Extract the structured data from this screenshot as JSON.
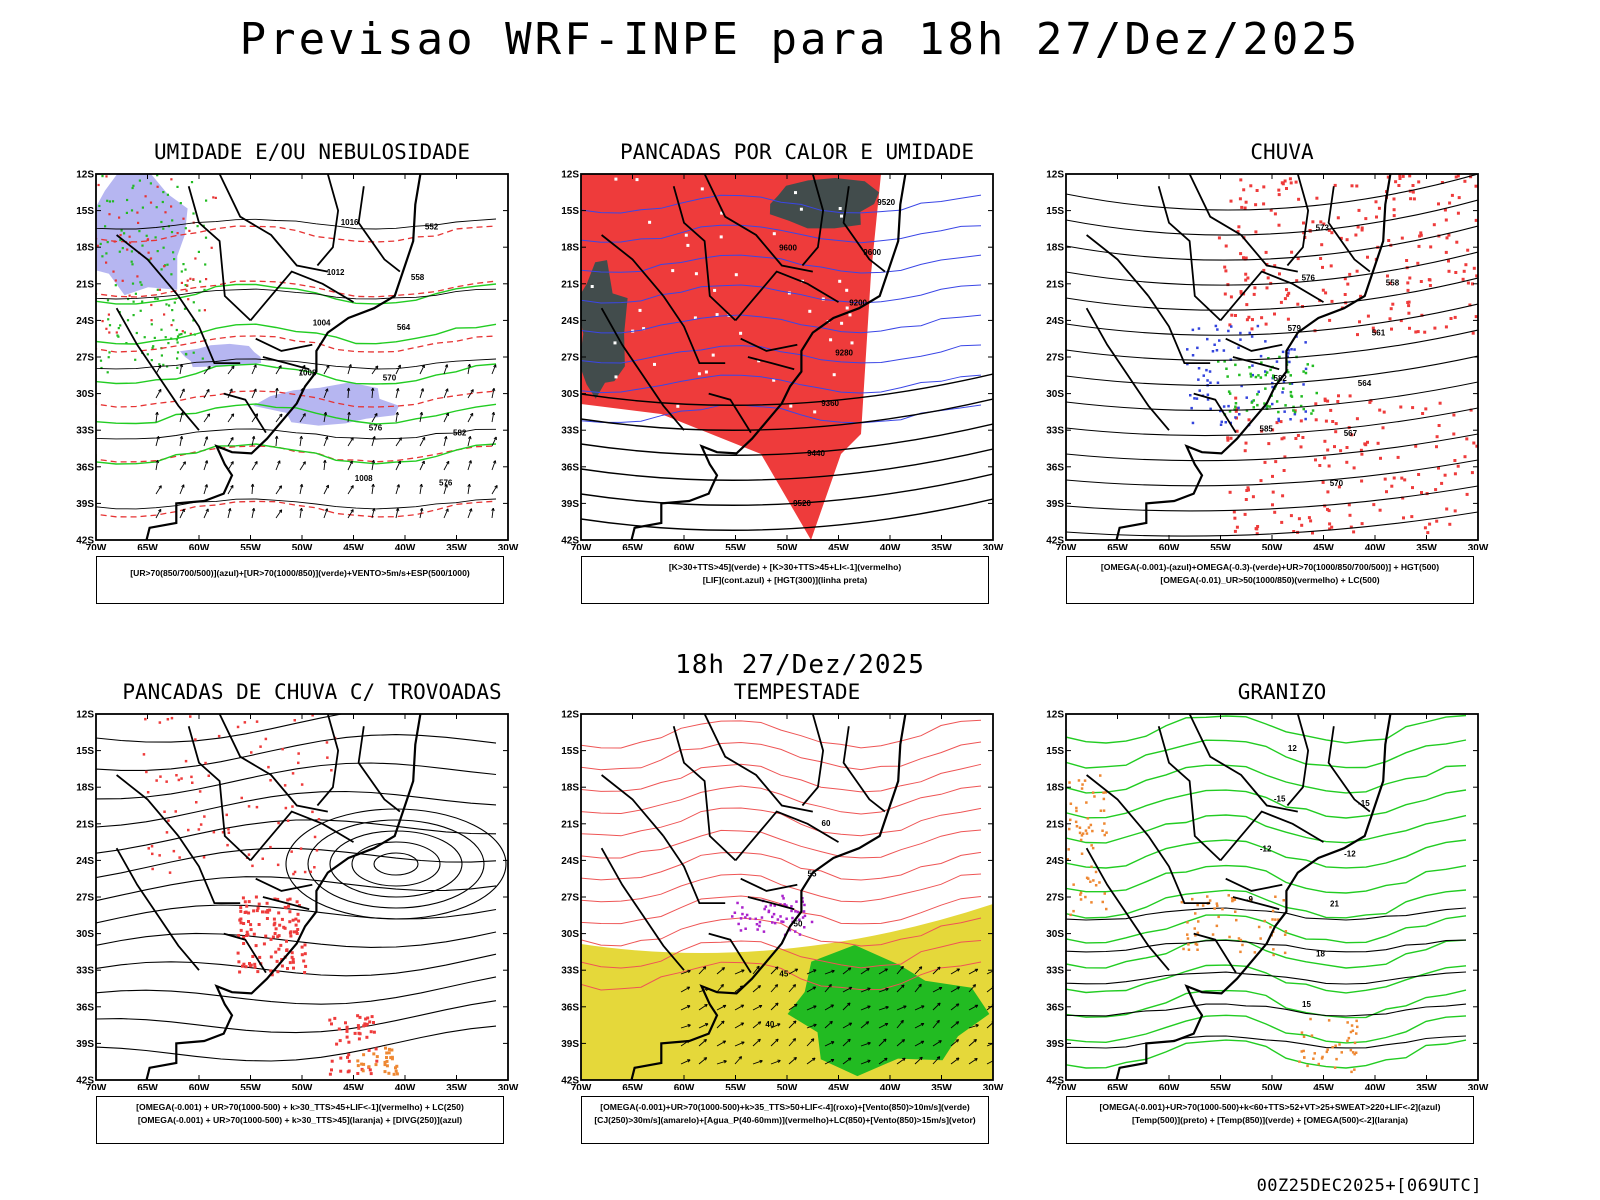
{
  "header": {
    "title": "Previsao WRF-INPE  para 18h 27/Dez/2025",
    "mid_time": "18h 27/Dez/2025",
    "run_stamp": "00Z25DEC2025+[069UTC]"
  },
  "axes": {
    "lat_labels": [
      "12S",
      "15S",
      "18S",
      "21S",
      "24S",
      "27S",
      "30S",
      "33S",
      "36S",
      "39S",
      "42S"
    ],
    "lon_labels": [
      "70W",
      "65W",
      "60W",
      "55W",
      "50W",
      "45W",
      "40W",
      "35W",
      "30W"
    ]
  },
  "panels": [
    {
      "id": "umidade",
      "title": "UMIDADE E/OU NEBULOSIDADE",
      "legend": [
        "[UR>70(850/700/500)](azul)+[UR>70(1000/850)](verde)+VENTO>5m/s+ESP(500/1000)"
      ],
      "contour_labels": [
        "1008",
        "1004",
        "1012",
        "1016",
        "1008",
        "576",
        "570",
        "564",
        "558",
        "552",
        "576",
        "582"
      ]
    },
    {
      "id": "pancadas-calor",
      "title": "PANCADAS POR CALOR E UMIDADE",
      "legend": [
        "[K>30+TTS>45](verde) + [K>30+TTS>45+LI<-1](vermelho)",
        "[LIF](cont.azul) + [HGT(300)](linha preta)"
      ],
      "contour_labels": [
        "9600",
        "9520",
        "9440",
        "9360",
        "9280",
        "9200",
        "9600",
        "9520"
      ]
    },
    {
      "id": "chuva",
      "title": "CHUVA",
      "legend": [
        "[OMEGA(-0.001)-(azul)+OMEGA(-0.3)-(verde)+UR>70(1000/850/700/500)] + HGT(500)",
        "[OMEGA(-0.01)_UR>50(1000/850)(vermelho) + LC(500)"
      ],
      "contour_labels": [
        "585",
        "582",
        "579",
        "576",
        "573",
        "570",
        "567",
        "564",
        "561",
        "558"
      ]
    },
    {
      "id": "pancadas-trovoadas",
      "title": "PANCADAS DE CHUVA C/ TROVOADAS",
      "legend": [
        "[OMEGA(-0.001) + UR>70(1000-500) + k>30_TTS>45+LIF<-1](vermelho) + LC(250)",
        "[OMEGA(-0.001) + UR>70(1000-500) + k>30_TTS>45](laranja) + [DIVG(250)](azul)"
      ],
      "contour_labels": []
    },
    {
      "id": "tempestade",
      "title": "TEMPESTADE",
      "legend": [
        "[OMEGA(-0.001)+UR>70(1000-500)+k>35_TTS>50+LIF<-4](roxo)+[Vento(850)>10m/s](verde)",
        "[CJ(250)>30m/s](amarelo)+[Agua_P(40-60mm)](vermelho)+LC(850)+[Vento(850)>15m/s](vetor)"
      ],
      "contour_labels": [
        "40",
        "45",
        "50",
        "55",
        "60"
      ]
    },
    {
      "id": "granizo",
      "title": "GRANIZO",
      "legend": [
        "[OMEGA(-0.001)+UR>70(1000-500)+k<60+TTS>52+VT>25+SWEAT>220+LIF<-2](azul)",
        "[Temp(500)](preto) + [Temp(850)](verde) + [OMEGA(500)<-2](laranja)"
      ],
      "contour_labels": [
        "-9",
        "-12",
        "-15",
        "12",
        "15",
        "18",
        "21",
        "-12",
        "-15"
      ]
    }
  ]
}
